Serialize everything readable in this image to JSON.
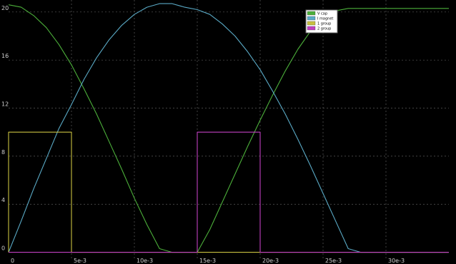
{
  "chart_data": {
    "type": "line",
    "title": "",
    "xlabel": "",
    "ylabel": "",
    "xlim": [
      0,
      0.035
    ],
    "ylim": [
      -0.5,
      21
    ],
    "grid": true,
    "legend_placement": "top-right",
    "background": "#000000",
    "x_ticks": [
      {
        "value": 0,
        "label": "0"
      },
      {
        "value": 0.005,
        "label": "5e-3"
      },
      {
        "value": 0.01,
        "label": "10e-3"
      },
      {
        "value": 0.015,
        "label": "15e-3"
      },
      {
        "value": 0.02,
        "label": "20e-3"
      },
      {
        "value": 0.025,
        "label": "25e-3"
      },
      {
        "value": 0.03,
        "label": "30e-3"
      }
    ],
    "y_ticks": [
      {
        "value": 0,
        "label": "0"
      },
      {
        "value": 4,
        "label": "4"
      },
      {
        "value": 8,
        "label": "8"
      },
      {
        "value": 12,
        "label": "12"
      },
      {
        "value": 16,
        "label": "16"
      },
      {
        "value": 20,
        "label": "20"
      }
    ],
    "series": [
      {
        "name": "V cap",
        "color": "#4caf3a",
        "x": [
          0,
          0.001,
          0.002,
          0.003,
          0.004,
          0.005,
          0.006,
          0.007,
          0.008,
          0.009,
          0.01,
          0.011,
          0.012,
          0.013,
          0.014,
          0.015,
          0.016,
          0.017,
          0.018,
          0.019,
          0.02,
          0.021,
          0.022,
          0.023,
          0.024,
          0.025,
          0.026,
          0.027,
          0.028,
          0.029,
          0.03,
          0.031,
          0.032,
          0.033,
          0.034,
          0.035
        ],
        "values": [
          20.6,
          20.4,
          19.7,
          18.7,
          17.3,
          15.6,
          13.6,
          11.5,
          9.2,
          6.9,
          4.5,
          2.3,
          0.3,
          0,
          0,
          0,
          1.9,
          4.2,
          6.5,
          8.8,
          11.0,
          13.1,
          15.1,
          16.9,
          18.4,
          19.5,
          20.1,
          20.3,
          20.3,
          20.3,
          20.3,
          20.3,
          20.3,
          20.3,
          20.3,
          20.3
        ]
      },
      {
        "name": "I magnet",
        "color": "#5aaac6",
        "x": [
          0,
          0.001,
          0.002,
          0.003,
          0.004,
          0.005,
          0.006,
          0.007,
          0.008,
          0.009,
          0.01,
          0.011,
          0.012,
          0.013,
          0.014,
          0.015,
          0.016,
          0.017,
          0.018,
          0.019,
          0.02,
          0.021,
          0.022,
          0.023,
          0.024,
          0.025,
          0.026,
          0.027,
          0.028,
          0.029,
          0.03,
          0.031,
          0.032,
          0.033,
          0.034,
          0.035
        ],
        "values": [
          0,
          2.6,
          5.3,
          7.8,
          10.3,
          12.3,
          14.4,
          16.2,
          17.7,
          18.9,
          19.8,
          20.4,
          20.7,
          20.7,
          20.4,
          20.2,
          19.8,
          19.0,
          18.0,
          16.7,
          15.2,
          13.4,
          11.5,
          9.4,
          7.2,
          4.9,
          2.6,
          0.3,
          0,
          0,
          0,
          0,
          0,
          0,
          0,
          0
        ]
      },
      {
        "name": "1 group",
        "color": "#c8c040",
        "x": [
          0,
          0,
          0.005,
          0.005,
          0.035
        ],
        "values": [
          0,
          10,
          10,
          0,
          0
        ]
      },
      {
        "name": "2 group",
        "color": "#c040c0",
        "x": [
          0,
          0.015,
          0.015,
          0.02,
          0.02,
          0.035
        ],
        "values": [
          0,
          0,
          10,
          10,
          0,
          0
        ]
      }
    ]
  }
}
